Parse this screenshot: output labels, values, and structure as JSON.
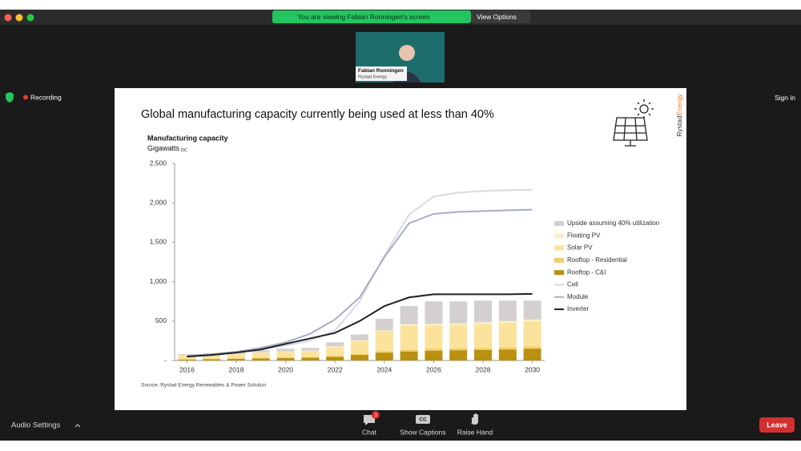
{
  "header": {
    "banner": "You are viewing Fabian Ronningen's screen",
    "view_options": "View Options"
  },
  "video": {
    "name": "Fabian Ronningen",
    "company": "Rystad Energy"
  },
  "status": {
    "recording": "Recording",
    "sign_in": "Sign in"
  },
  "slide": {
    "logo": [
      "Rystad",
      "Energy"
    ],
    "source": "Source: Rystad Energy Renewables & Power Solution"
  },
  "toolbar": {
    "audio": "Audio Settings",
    "chat": "Chat",
    "chat_badge": 3,
    "cc": "CC",
    "captions": "Show Captions",
    "raise_hand": "Raise Hand",
    "leave": "Leave"
  },
  "chart_data": {
    "type": "bar",
    "title": "Global manufacturing capacity currently being used at less than 40%",
    "y_label": "Manufacturing capacity",
    "y_unit": "Gigawatts",
    "y_unit_sub": "DC",
    "x": [
      2016,
      2017,
      2018,
      2019,
      2020,
      2021,
      2022,
      2023,
      2024,
      2025,
      2026,
      2027,
      2028,
      2029,
      2030
    ],
    "xlim": [
      2015.5,
      2030.5
    ],
    "xticks": [
      2016,
      2018,
      2020,
      2022,
      2024,
      2026,
      2028,
      2030
    ],
    "ylim": [
      0,
      2500
    ],
    "yticks": [
      {
        "value": 0,
        "label": "-"
      },
      500,
      {
        "value": 1000,
        "label": "1,000"
      },
      {
        "value": 1500,
        "label": "1,500"
      },
      {
        "value": 2000,
        "label": "2,000"
      },
      {
        "value": 2500,
        "label": "2,500"
      }
    ],
    "grid": false,
    "series": [
      {
        "name": "Upside assuming 40% utilization",
        "type": "bar",
        "color": "#d3d0cf",
        "values": [
          10,
          15,
          25,
          25,
          35,
          35,
          50,
          75,
          150,
          230,
          285,
          280,
          275,
          260,
          240
        ]
      },
      {
        "name": "Floating PV",
        "type": "bar",
        "color": "#fcefc8",
        "values": [
          0,
          0,
          0,
          5,
          5,
          5,
          10,
          10,
          10,
          20,
          20,
          20,
          20,
          20,
          20
        ]
      },
      {
        "name": "Solar PV",
        "type": "bar",
        "color": "#fbe39c",
        "values": [
          55,
          55,
          60,
          65,
          70,
          75,
          110,
          160,
          250,
          300,
          295,
          295,
          305,
          310,
          320
        ]
      },
      {
        "name": "Rooftop - Residential",
        "type": "bar",
        "color": "#f3cf6a",
        "values": [
          5,
          5,
          5,
          10,
          10,
          10,
          15,
          15,
          20,
          25,
          25,
          25,
          25,
          30,
          30
        ]
      },
      {
        "name": "Rooftop - C&I",
        "type": "bar",
        "color": "#b9900f",
        "values": [
          10,
          15,
          20,
          25,
          30,
          35,
          45,
          70,
          100,
          115,
          125,
          130,
          135,
          140,
          150
        ]
      },
      {
        "name": "Cell",
        "type": "line",
        "color": "#d8dae3",
        "values": [
          50,
          70,
          100,
          140,
          190,
          250,
          380,
          750,
          1330,
          1850,
          2080,
          2130,
          2150,
          2160,
          2165
        ]
      },
      {
        "name": "Module",
        "type": "line",
        "color": "#a8acc6",
        "values": [
          60,
          80,
          110,
          160,
          230,
          340,
          520,
          800,
          1310,
          1740,
          1860,
          1885,
          1895,
          1905,
          1915
        ]
      },
      {
        "name": "Inverter",
        "type": "line",
        "color": "#1f1f24",
        "values": [
          50,
          70,
          100,
          140,
          210,
          280,
          350,
          500,
          690,
          800,
          840,
          840,
          840,
          840,
          845
        ]
      }
    ]
  }
}
